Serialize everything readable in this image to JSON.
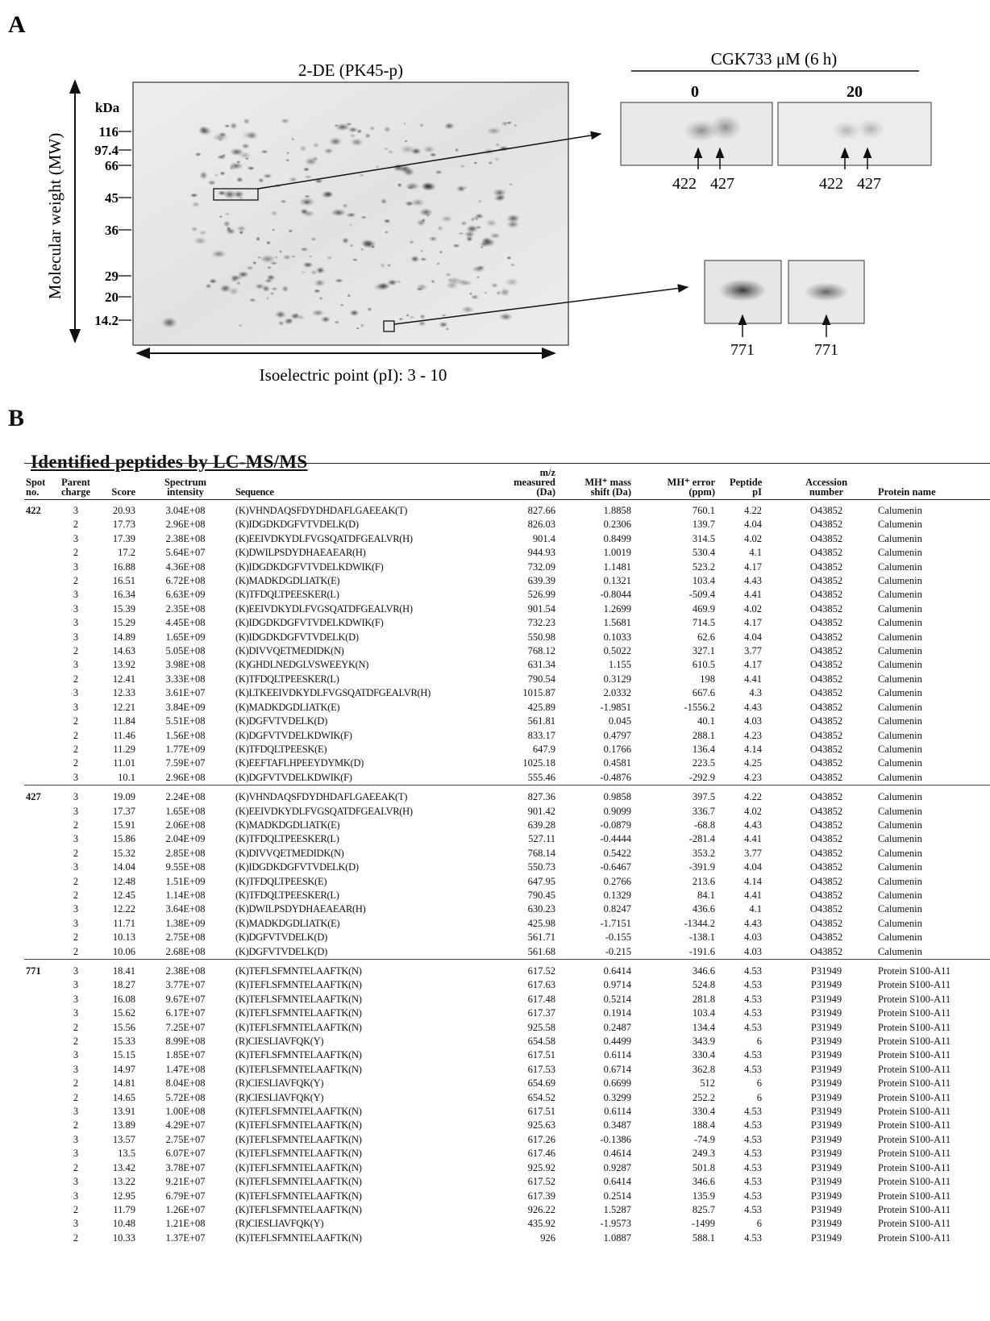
{
  "panel_a": {
    "label": "A",
    "gel_title": "2-DE (PK45-p)",
    "y_axis_label": "Molecular weight (MW)",
    "unit": "kDa",
    "markers": [
      "116",
      "97.4",
      "66",
      "45",
      "36",
      "29",
      "20",
      "14.2"
    ],
    "x_axis_label": "Isoelectric point (pI): 3 - 10",
    "inset_header": "CGK733 μM (6 h)",
    "conditions": [
      "0",
      "20"
    ],
    "spots": [
      "422",
      "427",
      "771"
    ]
  },
  "panel_b": {
    "label": "B",
    "title": "Identified peptides by LC-MS/MS",
    "columns": [
      "Spot\nno.",
      "Parent\ncharge",
      "Score",
      "Spectrum\nintensity",
      "Sequence",
      "m/z\nmeasured\n(Da)",
      "MH⁺ mass\nshift (Da)",
      "MH⁺ error\n(ppm)",
      "Peptide\npI",
      "Accession\nnumber",
      "Protein name"
    ],
    "groups": [
      {
        "spot": "422",
        "rows": [
          [
            "3",
            "20.93",
            "3.04E+08",
            "(K)VHNDAQSFDYDHDAFLGAEEAK(T)",
            "827.66",
            "1.8858",
            "760.1",
            "4.22",
            "O43852",
            "Calumenin"
          ],
          [
            "2",
            "17.73",
            "2.96E+08",
            "(K)IDGDKDGFVTVDELK(D)",
            "826.03",
            "0.2306",
            "139.7",
            "4.04",
            "O43852",
            "Calumenin"
          ],
          [
            "3",
            "17.39",
            "2.38E+08",
            "(K)EEIVDKYDLFVGSQATDFGEALVR(H)",
            "901.4",
            "0.8499",
            "314.5",
            "4.02",
            "O43852",
            "Calumenin"
          ],
          [
            "2",
            "17.2",
            "5.64E+07",
            "(K)DWILPSDYDHAEAEAR(H)",
            "944.93",
            "1.0019",
            "530.4",
            "4.1",
            "O43852",
            "Calumenin"
          ],
          [
            "3",
            "16.88",
            "4.36E+08",
            "(K)IDGDKDGFVTVDELKDWIK(F)",
            "732.09",
            "1.1481",
            "523.2",
            "4.17",
            "O43852",
            "Calumenin"
          ],
          [
            "2",
            "16.51",
            "6.72E+08",
            "(K)MADKDGDLIATK(E)",
            "639.39",
            "0.1321",
            "103.4",
            "4.43",
            "O43852",
            "Calumenin"
          ],
          [
            "3",
            "16.34",
            "6.63E+09",
            "(K)TFDQLTPEESKER(L)",
            "526.99",
            "-0.8044",
            "-509.4",
            "4.41",
            "O43852",
            "Calumenin"
          ],
          [
            "3",
            "15.39",
            "2.35E+08",
            "(K)EEIVDKYDLFVGSQATDFGEALVR(H)",
            "901.54",
            "1.2699",
            "469.9",
            "4.02",
            "O43852",
            "Calumenin"
          ],
          [
            "3",
            "15.29",
            "4.45E+08",
            "(K)IDGDKDGFVTVDELKDWIK(F)",
            "732.23",
            "1.5681",
            "714.5",
            "4.17",
            "O43852",
            "Calumenin"
          ],
          [
            "3",
            "14.89",
            "1.65E+09",
            "(K)IDGDKDGFVTVDELK(D)",
            "550.98",
            "0.1033",
            "62.6",
            "4.04",
            "O43852",
            "Calumenin"
          ],
          [
            "2",
            "14.63",
            "5.05E+08",
            "(K)DIVVQETMEDIDK(N)",
            "768.12",
            "0.5022",
            "327.1",
            "3.77",
            "O43852",
            "Calumenin"
          ],
          [
            "3",
            "13.92",
            "3.98E+08",
            "(K)GHDLNEDGLVSWEEYK(N)",
            "631.34",
            "1.155",
            "610.5",
            "4.17",
            "O43852",
            "Calumenin"
          ],
          [
            "2",
            "12.41",
            "3.33E+08",
            "(K)TFDQLTPEESKER(L)",
            "790.54",
            "0.3129",
            "198",
            "4.41",
            "O43852",
            "Calumenin"
          ],
          [
            "3",
            "12.33",
            "3.61E+07",
            "(K)LTKEEIVDKYDLFVGSQATDFGEALVR(H)",
            "1015.87",
            "2.0332",
            "667.6",
            "4.3",
            "O43852",
            "Calumenin"
          ],
          [
            "3",
            "12.21",
            "3.84E+09",
            "(K)MADKDGDLIATK(E)",
            "425.89",
            "-1.9851",
            "-1556.2",
            "4.43",
            "O43852",
            "Calumenin"
          ],
          [
            "2",
            "11.84",
            "5.51E+08",
            "(K)DGFVTVDELK(D)",
            "561.81",
            "0.045",
            "40.1",
            "4.03",
            "O43852",
            "Calumenin"
          ],
          [
            "2",
            "11.46",
            "1.56E+08",
            "(K)DGFVTVDELKDWIK(F)",
            "833.17",
            "0.4797",
            "288.1",
            "4.23",
            "O43852",
            "Calumenin"
          ],
          [
            "2",
            "11.29",
            "1.77E+09",
            "(K)TFDQLTPEESK(E)",
            "647.9",
            "0.1766",
            "136.4",
            "4.14",
            "O43852",
            "Calumenin"
          ],
          [
            "2",
            "11.01",
            "7.59E+07",
            "(K)EEFTAFLHPEEYDYMK(D)",
            "1025.18",
            "0.4581",
            "223.5",
            "4.25",
            "O43852",
            "Calumenin"
          ],
          [
            "3",
            "10.1",
            "2.96E+08",
            "(K)DGFVTVDELKDWIK(F)",
            "555.46",
            "-0.4876",
            "-292.9",
            "4.23",
            "O43852",
            "Calumenin"
          ]
        ]
      },
      {
        "spot": "427",
        "rows": [
          [
            "3",
            "19.09",
            "2.24E+08",
            "(K)VHNDAQSFDYDHDAFLGAEEAK(T)",
            "827.36",
            "0.9858",
            "397.5",
            "4.22",
            "O43852",
            "Calumenin"
          ],
          [
            "3",
            "17.37",
            "1.65E+08",
            "(K)EEIVDKYDLFVGSQATDFGEALVR(H)",
            "901.42",
            "0.9099",
            "336.7",
            "4.02",
            "O43852",
            "Calumenin"
          ],
          [
            "2",
            "15.91",
            "2.06E+08",
            "(K)MADKDGDLIATK(E)",
            "639.28",
            "-0.0879",
            "-68.8",
            "4.43",
            "O43852",
            "Calumenin"
          ],
          [
            "3",
            "15.86",
            "2.04E+09",
            "(K)TFDQLTPEESKER(L)",
            "527.11",
            "-0.4444",
            "-281.4",
            "4.41",
            "O43852",
            "Calumenin"
          ],
          [
            "2",
            "15.32",
            "2.85E+08",
            "(K)DIVVQETMEDIDK(N)",
            "768.14",
            "0.5422",
            "353.2",
            "3.77",
            "O43852",
            "Calumenin"
          ],
          [
            "3",
            "14.04",
            "9.55E+08",
            "(K)IDGDKDGFVTVDELK(D)",
            "550.73",
            "-0.6467",
            "-391.9",
            "4.04",
            "O43852",
            "Calumenin"
          ],
          [
            "2",
            "12.48",
            "1.51E+09",
            "(K)TFDQLTPEESK(E)",
            "647.95",
            "0.2766",
            "213.6",
            "4.14",
            "O43852",
            "Calumenin"
          ],
          [
            "2",
            "12.45",
            "1.14E+08",
            "(K)TFDQLTPEESKER(L)",
            "790.45",
            "0.1329",
            "84.1",
            "4.41",
            "O43852",
            "Calumenin"
          ],
          [
            "3",
            "12.22",
            "3.64E+08",
            "(K)DWILPSDYDHAEAEAR(H)",
            "630.23",
            "0.8247",
            "436.6",
            "4.1",
            "O43852",
            "Calumenin"
          ],
          [
            "3",
            "11.71",
            "1.38E+09",
            "(K)MADKDGDLIATK(E)",
            "425.98",
            "-1.7151",
            "-1344.2",
            "4.43",
            "O43852",
            "Calumenin"
          ],
          [
            "2",
            "10.13",
            "2.75E+08",
            "(K)DGFVTVDELK(D)",
            "561.71",
            "-0.155",
            "-138.1",
            "4.03",
            "O43852",
            "Calumenin"
          ],
          [
            "2",
            "10.06",
            "2.68E+08",
            "(K)DGFVTVDELK(D)",
            "561.68",
            "-0.215",
            "-191.6",
            "4.03",
            "O43852",
            "Calumenin"
          ]
        ]
      },
      {
        "spot": "771",
        "rows": [
          [
            "3",
            "18.41",
            "2.38E+08",
            "(K)TEFLSFMNTELAAFTK(N)",
            "617.52",
            "0.6414",
            "346.6",
            "4.53",
            "P31949",
            "Protein S100-A11"
          ],
          [
            "3",
            "18.27",
            "3.77E+07",
            "(K)TEFLSFMNTELAAFTK(N)",
            "617.63",
            "0.9714",
            "524.8",
            "4.53",
            "P31949",
            "Protein S100-A11"
          ],
          [
            "3",
            "16.08",
            "9.67E+07",
            "(K)TEFLSFMNTELAAFTK(N)",
            "617.48",
            "0.5214",
            "281.8",
            "4.53",
            "P31949",
            "Protein S100-A11"
          ],
          [
            "3",
            "15.62",
            "6.17E+07",
            "(K)TEFLSFMNTELAAFTK(N)",
            "617.37",
            "0.1914",
            "103.4",
            "4.53",
            "P31949",
            "Protein S100-A11"
          ],
          [
            "2",
            "15.56",
            "7.25E+07",
            "(K)TEFLSFMNTELAAFTK(N)",
            "925.58",
            "0.2487",
            "134.4",
            "4.53",
            "P31949",
            "Protein S100-A11"
          ],
          [
            "2",
            "15.33",
            "8.99E+08",
            "(R)CIESLIAVFQK(Y)",
            "654.58",
            "0.4499",
            "343.9",
            "6",
            "P31949",
            "Protein S100-A11"
          ],
          [
            "3",
            "15.15",
            "1.85E+07",
            "(K)TEFLSFMNTELAAFTK(N)",
            "617.51",
            "0.6114",
            "330.4",
            "4.53",
            "P31949",
            "Protein S100-A11"
          ],
          [
            "3",
            "14.97",
            "1.47E+08",
            "(K)TEFLSFMNTELAAFTK(N)",
            "617.53",
            "0.6714",
            "362.8",
            "4.53",
            "P31949",
            "Protein S100-A11"
          ],
          [
            "2",
            "14.81",
            "8.04E+08",
            "(R)CIESLIAVFQK(Y)",
            "654.69",
            "0.6699",
            "512",
            "6",
            "P31949",
            "Protein S100-A11"
          ],
          [
            "2",
            "14.65",
            "5.72E+08",
            "(R)CIESLIAVFQK(Y)",
            "654.52",
            "0.3299",
            "252.2",
            "6",
            "P31949",
            "Protein S100-A11"
          ],
          [
            "3",
            "13.91",
            "1.00E+08",
            "(K)TEFLSFMNTELAAFTK(N)",
            "617.51",
            "0.6114",
            "330.4",
            "4.53",
            "P31949",
            "Protein S100-A11"
          ],
          [
            "2",
            "13.89",
            "4.29E+07",
            "(K)TEFLSFMNTELAAFTK(N)",
            "925.63",
            "0.3487",
            "188.4",
            "4.53",
            "P31949",
            "Protein S100-A11"
          ],
          [
            "3",
            "13.57",
            "2.75E+07",
            "(K)TEFLSFMNTELAAFTK(N)",
            "617.26",
            "-0.1386",
            "-74.9",
            "4.53",
            "P31949",
            "Protein S100-A11"
          ],
          [
            "3",
            "13.5",
            "6.07E+07",
            "(K)TEFLSFMNTELAAFTK(N)",
            "617.46",
            "0.4614",
            "249.3",
            "4.53",
            "P31949",
            "Protein S100-A11"
          ],
          [
            "2",
            "13.42",
            "3.78E+07",
            "(K)TEFLSFMNTELAAFTK(N)",
            "925.92",
            "0.9287",
            "501.8",
            "4.53",
            "P31949",
            "Protein S100-A11"
          ],
          [
            "3",
            "13.22",
            "9.21E+07",
            "(K)TEFLSFMNTELAAFTK(N)",
            "617.52",
            "0.6414",
            "346.6",
            "4.53",
            "P31949",
            "Protein S100-A11"
          ],
          [
            "3",
            "12.95",
            "6.79E+07",
            "(K)TEFLSFMNTELAAFTK(N)",
            "617.39",
            "0.2514",
            "135.9",
            "4.53",
            "P31949",
            "Protein S100-A11"
          ],
          [
            "2",
            "11.79",
            "1.26E+07",
            "(K)TEFLSFMNTELAAFTK(N)",
            "926.22",
            "1.5287",
            "825.7",
            "4.53",
            "P31949",
            "Protein S100-A11"
          ],
          [
            "3",
            "10.48",
            "1.21E+08",
            "(R)CIESLIAVFQK(Y)",
            "435.92",
            "-1.9573",
            "-1499",
            "6",
            "P31949",
            "Protein S100-A11"
          ],
          [
            "2",
            "10.33",
            "1.37E+07",
            "(K)TEFLSFMNTELAAFTK(N)",
            "926",
            "1.0887",
            "588.1",
            "4.53",
            "P31949",
            "Protein S100-A11"
          ]
        ]
      }
    ]
  }
}
